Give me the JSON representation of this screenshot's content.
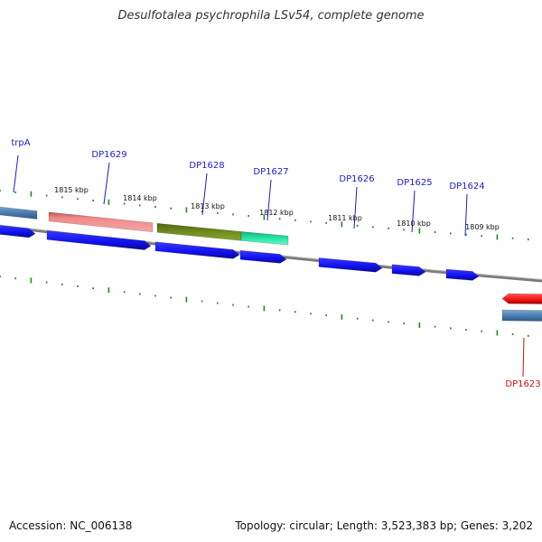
{
  "title": "Desulfotalea psychrophila LSv54, complete genome",
  "footer": {
    "accession": "Accession: NC_006138",
    "summary": "Topology: circular; Length: 3,523,383 bp; Genes: 3,202"
  },
  "colors": {
    "cds_blue": "#1010ee",
    "gene_steel": "#4a7fb0",
    "gene_salmon": "#f08a8a",
    "gene_olive": "#6f8c1f",
    "gene_mint": "#22e6a6",
    "gene_red": "#ee1111",
    "tick_green": "#1f8a1f",
    "label_blue": "#1c1cd0",
    "label_red": "#cc1111",
    "backbone": "#7a7a7a"
  },
  "scale_labels": [
    "1815 kbp",
    "1814 kbp",
    "1813 kbp",
    "1812 kbp",
    "1811 kbp",
    "1810 kbp",
    "1809 kbp"
  ],
  "gene_labels": [
    {
      "name": "trpA",
      "color": "label_blue"
    },
    {
      "name": "DP1629",
      "color": "label_blue"
    },
    {
      "name": "DP1628",
      "color": "label_blue"
    },
    {
      "name": "DP1627",
      "color": "label_blue"
    },
    {
      "name": "DP1626",
      "color": "label_blue"
    },
    {
      "name": "DP1625",
      "color": "label_blue"
    },
    {
      "name": "DP1624",
      "color": "label_blue"
    },
    {
      "name": "DP1623",
      "color": "label_red"
    }
  ]
}
